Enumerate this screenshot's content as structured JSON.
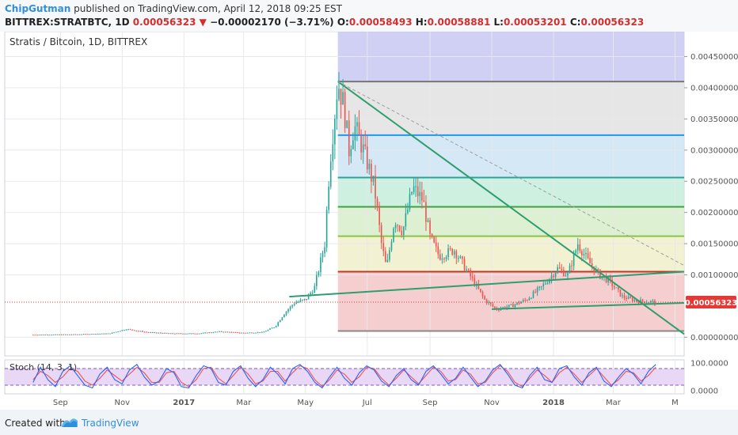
{
  "header": {
    "author": "ChipGutman",
    "published": "published on TradingView.com, April 12, 2018 09:25 EST",
    "symbol": "BITTREX:STRATBTC, 1D",
    "last": "0.00056323",
    "change_arrow": "▼",
    "change": "−0.00002170 (−3.71%)",
    "o_label": "O:",
    "o_value": "0.00058493",
    "h_label": "H:",
    "h_value": "0.00058881",
    "l_label": "L:",
    "l_value": "0.00053201",
    "c_label": "C:",
    "c_value": "0.00056323"
  },
  "footer": {
    "created": "Created with",
    "brand": "TradingView"
  },
  "colors": {
    "up": "#26a69a",
    "down": "#ef5350",
    "trend": "#2e9e6e",
    "stoch_k": "#2962ff",
    "stoch_d": "#ef5350",
    "stoch_bg": "#e9d8f5",
    "last_price": "#e53935"
  },
  "chart_data": [
    {
      "type": "line",
      "title": "Stratis / Bitcoin, 1D, BITTREX",
      "y_tick_labels": [
        "0.00450000",
        "0.00400000",
        "0.00350000",
        "0.00300000",
        "0.00250000",
        "0.00200000",
        "0.00150000",
        "0.00100000",
        "0.00000000"
      ],
      "y_ticks": [
        0.0045,
        0.004,
        0.0035,
        0.003,
        0.0025,
        0.002,
        0.0015,
        0.001,
        0.0
      ],
      "ylim": [
        -0.0003,
        0.0049
      ],
      "x_tick_labels": [
        "Sep",
        "Nov",
        "2017",
        "Mar",
        "May",
        "Jul",
        "Sep",
        "Nov",
        "2018",
        "Mar",
        "M"
      ],
      "x_tick_dates": [
        "2016-09-01",
        "2016-11-01",
        "2017-01-01",
        "2017-03-01",
        "2017-05-01",
        "2017-07-01",
        "2017-09-01",
        "2017-11-01",
        "2018-01-01",
        "2018-03-01",
        "2018-05-01"
      ],
      "xlim": [
        "2016-07-08",
        "2018-05-10"
      ],
      "grid": true,
      "price_series": [
        {
          "date": "2016-08-05",
          "close": 4e-05
        },
        {
          "date": "2016-09-15",
          "close": 4.5e-05
        },
        {
          "date": "2016-10-20",
          "close": 6e-05
        },
        {
          "date": "2016-11-05",
          "close": 0.00013
        },
        {
          "date": "2016-11-25",
          "close": 8e-05
        },
        {
          "date": "2016-12-20",
          "close": 6e-05
        },
        {
          "date": "2017-01-15",
          "close": 6e-05
        },
        {
          "date": "2017-02-05",
          "close": 9e-05
        },
        {
          "date": "2017-03-01",
          "close": 7e-05
        },
        {
          "date": "2017-03-20",
          "close": 8e-05
        },
        {
          "date": "2017-04-01",
          "close": 0.00017
        },
        {
          "date": "2017-04-10",
          "close": 0.00038
        },
        {
          "date": "2017-04-20",
          "close": 0.00055
        },
        {
          "date": "2017-05-01",
          "close": 0.0006
        },
        {
          "date": "2017-05-10",
          "close": 0.0008
        },
        {
          "date": "2017-05-20",
          "close": 0.0015
        },
        {
          "date": "2017-05-25",
          "close": 0.0028
        },
        {
          "date": "2017-06-02",
          "close": 0.0041
        },
        {
          "date": "2017-06-08",
          "close": 0.0037
        },
        {
          "date": "2017-06-13",
          "close": 0.003
        },
        {
          "date": "2017-06-18",
          "close": 0.0034
        },
        {
          "date": "2017-06-25",
          "close": 0.0031
        },
        {
          "date": "2017-07-01",
          "close": 0.0028
        },
        {
          "date": "2017-07-08",
          "close": 0.0024
        },
        {
          "date": "2017-07-15",
          "close": 0.0015
        },
        {
          "date": "2017-07-20",
          "close": 0.0011
        },
        {
          "date": "2017-07-28",
          "close": 0.0019
        },
        {
          "date": "2017-08-05",
          "close": 0.0017
        },
        {
          "date": "2017-08-15",
          "close": 0.0024
        },
        {
          "date": "2017-08-25",
          "close": 0.0022
        },
        {
          "date": "2017-09-01",
          "close": 0.0016
        },
        {
          "date": "2017-09-10",
          "close": 0.0013
        },
        {
          "date": "2017-09-25",
          "close": 0.0014
        },
        {
          "date": "2017-10-10",
          "close": 0.001
        },
        {
          "date": "2017-10-25",
          "close": 0.0006
        },
        {
          "date": "2017-11-05",
          "close": 0.00045
        },
        {
          "date": "2017-11-20",
          "close": 0.0005
        },
        {
          "date": "2017-12-05",
          "close": 0.0006
        },
        {
          "date": "2017-12-20",
          "close": 0.0008
        },
        {
          "date": "2018-01-05",
          "close": 0.0011
        },
        {
          "date": "2018-01-15",
          "close": 0.001
        },
        {
          "date": "2018-01-25",
          "close": 0.0015
        },
        {
          "date": "2018-02-05",
          "close": 0.0012
        },
        {
          "date": "2018-02-15",
          "close": 0.001
        },
        {
          "date": "2018-02-25",
          "close": 0.0009
        },
        {
          "date": "2018-03-10",
          "close": 0.00065
        },
        {
          "date": "2018-03-25",
          "close": 0.00058
        },
        {
          "date": "2018-04-12",
          "close": 0.00056323
        }
      ],
      "fib_levels": [
        0.0001,
        0.00105,
        0.00162,
        0.00209,
        0.00256,
        0.00324,
        0.0041
      ],
      "fib_band_colors": [
        "#f4caca",
        "#f1efcd",
        "#d9f0cd",
        "#c8eedd",
        "#cfe7f4",
        "#e3e3e3",
        "#cacbf3"
      ],
      "fib_line_colors": [
        "#888888",
        "#c0392b",
        "#8bc34a",
        "#43a047",
        "#26a69a",
        "#2196f3",
        "#777777"
      ],
      "trendlines": [
        {
          "from": [
            "2017-06-02",
            0.0041
          ],
          "to": [
            "2018-05-10",
            5e-05
          ]
        },
        {
          "from": [
            "2017-04-15",
            0.00065
          ],
          "to": [
            "2018-05-10",
            0.00105
          ]
        },
        {
          "from": [
            "2017-11-01",
            0.00045
          ],
          "to": [
            "2018-05-10",
            0.00055
          ]
        }
      ],
      "dashed_line": {
        "from": [
          "2017-06-02",
          0.0041
        ],
        "to": [
          "2018-05-10",
          0.00115
        ]
      },
      "last_price_label": "0.00056323"
    },
    {
      "type": "line",
      "title": "Stoch (14, 3, 1)",
      "y_tick_labels": [
        "100.0000",
        "0.0000"
      ],
      "ylim": [
        0,
        100
      ],
      "bands": [
        20,
        80
      ],
      "k_values": [
        30,
        85,
        40,
        15,
        70,
        90,
        55,
        20,
        10,
        60,
        85,
        40,
        25,
        75,
        95,
        50,
        20,
        35,
        80,
        65,
        15,
        10,
        55,
        90,
        80,
        30,
        20,
        70,
        90,
        45,
        15,
        40,
        85,
        60,
        25,
        80,
        95,
        70,
        30,
        10,
        50,
        85,
        45,
        20,
        65,
        90,
        75,
        35,
        15,
        55,
        80,
        40,
        20,
        70,
        90,
        60,
        25,
        45,
        85,
        50,
        15,
        35,
        75,
        95,
        60,
        20,
        10,
        55,
        85,
        40,
        30,
        80,
        90,
        50,
        20,
        65,
        85,
        35,
        15,
        50,
        80,
        60,
        25,
        70,
        95
      ],
      "d_values": [
        40,
        70,
        55,
        30,
        50,
        80,
        70,
        35,
        20,
        45,
        75,
        55,
        35,
        60,
        85,
        65,
        30,
        30,
        65,
        70,
        30,
        15,
        40,
        80,
        85,
        45,
        25,
        55,
        85,
        60,
        25,
        35,
        70,
        70,
        35,
        65,
        90,
        80,
        40,
        15,
        40,
        75,
        60,
        30,
        50,
        85,
        80,
        45,
        20,
        45,
        75,
        50,
        25,
        55,
        85,
        70,
        35,
        40,
        75,
        60,
        25,
        30,
        65,
        90,
        70,
        30,
        15,
        45,
        75,
        55,
        30,
        65,
        85,
        60,
        30,
        55,
        80,
        50,
        20,
        40,
        70,
        65,
        35,
        55,
        85
      ]
    }
  ]
}
